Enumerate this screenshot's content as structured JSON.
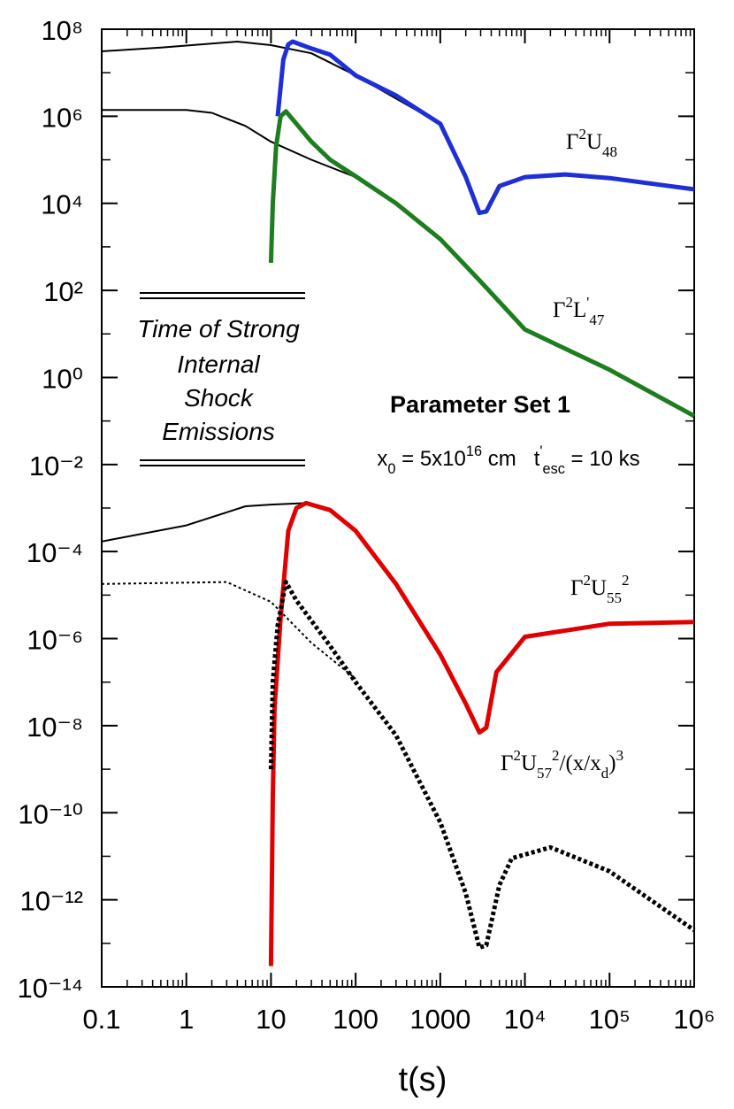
{
  "chart_data": {
    "type": "line",
    "x_label": "t(s)",
    "xlog": true,
    "ylog": true,
    "xlim": [
      0.1,
      1000000
    ],
    "ylim": [
      1e-14,
      100000000
    ],
    "xticks": [
      0.1,
      1,
      10,
      100,
      1000,
      {
        "value": 10000,
        "label": "10⁴"
      },
      {
        "value": 100000,
        "label": "10⁵"
      },
      {
        "value": 1000000,
        "label": "10⁶"
      }
    ],
    "yticks": [
      {
        "value": 1e-14,
        "label": "10⁻¹⁴"
      },
      {
        "value": 1e-12,
        "label": "10⁻¹²"
      },
      {
        "value": 1e-10,
        "label": "10⁻¹⁰"
      },
      {
        "value": 1e-08,
        "label": "10⁻⁸"
      },
      {
        "value": 1e-06,
        "label": "10⁻⁶"
      },
      {
        "value": 0.0001,
        "label": "10⁻⁴"
      },
      {
        "value": 0.01,
        "label": "10⁻²"
      },
      {
        "value": 1,
        "label": "10⁰"
      },
      {
        "value": 100,
        "label": "10²"
      },
      {
        "value": 10000,
        "label": "10⁴"
      },
      {
        "value": 1000000,
        "label": "10⁶"
      },
      {
        "value": 100000000,
        "label": "10⁸"
      }
    ],
    "series": [
      {
        "color": "#000000",
        "width": 2,
        "dash": "none",
        "x": [
          0.1,
          0.5,
          1,
          4,
          10,
          30,
          100,
          1000
        ],
        "values": [
          31000000,
          38000000,
          42000000,
          52000000,
          43000000,
          28000000,
          8700000,
          670000
        ]
      },
      {
        "color": "#000000",
        "width": 2,
        "dash": "none",
        "x": [
          0.1,
          1,
          2,
          5,
          10,
          30,
          100,
          300
        ],
        "values": [
          1400000,
          1400000,
          1200000,
          600000,
          260000,
          100000,
          40000,
          10000
        ]
      },
      {
        "color": "#000000",
        "width": 2,
        "dash": "none",
        "x": [
          0.1,
          1,
          5,
          10,
          26
        ],
        "values": [
          0.00017,
          0.0004,
          0.0011,
          0.0012,
          0.0013
        ]
      },
      {
        "color": "#000000",
        "width": 2,
        "dash": "3,3",
        "x": [
          0.1,
          3,
          10,
          30,
          100
        ],
        "values": [
          1.8e-05,
          2e-05,
          7e-06,
          8e-07,
          1.2e-07
        ]
      },
      {
        "color": "#1f2fd6",
        "width": 5,
        "dash": "none",
        "x": [
          12,
          14,
          16,
          18,
          30,
          50,
          100,
          300,
          1000,
          2000,
          2900,
          3500,
          5000,
          10000,
          30000,
          100000,
          1000000
        ],
        "values": [
          1000000,
          20000000,
          45000000,
          52000000,
          36000000,
          26000000,
          8700000,
          3000000,
          670000,
          40000,
          6000,
          6500,
          25000,
          40000,
          46000,
          38000,
          21000
        ]
      },
      {
        "color": "#1e7d1e",
        "width": 5,
        "dash": "none",
        "x": [
          10,
          10.5,
          11.5,
          13,
          15,
          20,
          30,
          50,
          100,
          300,
          1000,
          3000,
          10000,
          100000,
          1000000
        ],
        "values": [
          430,
          10000,
          200000,
          1000000,
          1300000,
          670000,
          260000,
          100000,
          42000,
          10000,
          1500,
          160,
          12.6,
          1.5,
          0.13
        ]
      },
      {
        "color": "#e00000",
        "width": 5,
        "dash": "none",
        "x": [
          10,
          10.5,
          11,
          13,
          16,
          20,
          26,
          50,
          100,
          300,
          1000,
          2000,
          2900,
          3500,
          4600,
          10000,
          100000,
          1000000
        ],
        "values": [
          3e-14,
          2.5e-10,
          2.5e-08,
          3e-06,
          0.0003,
          0.001,
          0.0013,
          0.0009,
          0.0003,
          1.8e-05,
          4.3e-07,
          3.2e-08,
          7e-09,
          9e-09,
          1.7e-07,
          1.1e-06,
          2.2e-06,
          2.4e-06
        ]
      },
      {
        "color": "#000000",
        "width": 5,
        "dash": "4,3",
        "x": [
          10,
          10.5,
          12,
          15,
          20,
          50,
          100,
          300,
          1000,
          2000,
          2900,
          3500,
          5000,
          7000,
          20000,
          100000,
          1000000
        ],
        "values": [
          1e-09,
          1e-07,
          2e-06,
          2e-05,
          7.5e-06,
          6.8e-07,
          1e-07,
          6e-09,
          6e-11,
          1.4e-12,
          8e-14,
          9e-14,
          2.2e-12,
          9e-12,
          1.6e-11,
          4.5e-12,
          2e-13
        ]
      }
    ],
    "annotations": [
      {
        "parts": [
          {
            "text": "Γ"
          },
          {
            "text": "2",
            "shift": "sup"
          },
          {
            "text": "U"
          },
          {
            "text": "48",
            "shift": "sub"
          }
        ]
      },
      {
        "parts": [
          {
            "text": "Γ"
          },
          {
            "text": "2",
            "shift": "sup"
          },
          {
            "text": "L"
          },
          {
            "text": "'",
            "shift": "sup"
          },
          {
            "text": "47",
            "shift": "sub"
          }
        ]
      },
      {
        "parts": [
          {
            "text": "Parameter Set 1",
            "weight": "bold"
          }
        ]
      },
      {
        "parts": [
          {
            "text": "x"
          },
          {
            "text": "0",
            "shift": "sub"
          },
          {
            "text": " = 5x10"
          },
          {
            "text": "16",
            "shift": "sup"
          },
          {
            "text": " cm   t"
          },
          {
            "text": "'",
            "shift": "sup"
          },
          {
            "text": "esc",
            "shift": "sub"
          },
          {
            "text": " = 10 ks"
          }
        ]
      },
      {
        "parts": [
          {
            "text": "Γ"
          },
          {
            "text": "2",
            "shift": "sup"
          },
          {
            "text": "U"
          },
          {
            "text": "55",
            "shift": "sub"
          },
          {
            "text": "2",
            "shift": "sup"
          }
        ]
      },
      {
        "parts": [
          {
            "text": "Γ"
          },
          {
            "text": "2",
            "shift": "sup"
          },
          {
            "text": "U"
          },
          {
            "text": "57",
            "shift": "sub"
          },
          {
            "text": "2",
            "shift": "sup"
          },
          {
            "text": "/(x/x"
          },
          {
            "text": "d",
            "shift": "sub"
          },
          {
            "text": ")"
          },
          {
            "text": "3",
            "shift": "sup"
          }
        ]
      }
    ],
    "note_lines": [
      "Time of Strong",
      "Internal",
      "Shock",
      "Emissions"
    ]
  }
}
